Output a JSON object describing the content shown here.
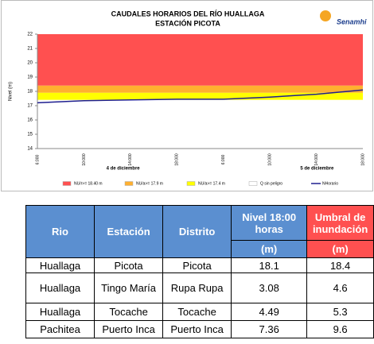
{
  "chart_data": {
    "type": "line",
    "title": "CAUDALES HORARIOS DEL RÍO HUALLAGA",
    "subtitle": "ESTACIÓN PICOTA",
    "logo": "Senamhi",
    "y_label": "Nivel (m)",
    "categories": [
      "6:000",
      "10:000",
      "14:000",
      "18:000",
      "6:000",
      "10:000",
      "14:000",
      "18:000"
    ],
    "date_labels": [
      "4 de diciembre",
      "5 de diciembre"
    ],
    "ylim": [
      14,
      22
    ],
    "yticks": [
      14,
      15,
      16,
      17,
      18,
      19,
      20,
      21,
      22
    ],
    "bands": [
      {
        "name": "NU/r>= 18.40 m",
        "color": "#ff5050",
        "from": 18.4,
        "to": 22
      },
      {
        "name": "NU/a>= 17.9 m",
        "color": "#ffb030",
        "from": 17.9,
        "to": 18.4
      },
      {
        "name": "NU/a>= 17.4 m",
        "color": "#ffff00",
        "from": 17.4,
        "to": 17.9
      },
      {
        "name": "Q sin peligro",
        "color": "#ffffff",
        "from": 14,
        "to": 17.4
      }
    ],
    "series": [
      {
        "name": "NHorario",
        "color": "#1f1f8f",
        "values": [
          17.2,
          17.35,
          17.4,
          17.45,
          17.45,
          17.6,
          17.8,
          18.1
        ]
      }
    ]
  },
  "table": {
    "header": [
      "Rio",
      "Estación",
      "Distrito",
      "Nivel 18:00 horas",
      "Umbral de inundación"
    ],
    "units": [
      "(m)",
      "(m)"
    ],
    "rows": [
      [
        "Huallaga",
        "Picota",
        "Picota",
        18.1,
        18.4
      ],
      [
        "Huallaga",
        "Tingo María",
        "Rupa Rupa",
        3.08,
        4.6
      ],
      [
        "Huallaga",
        "Tocache",
        "Tocache",
        4.49,
        5.3
      ],
      [
        "Pachitea",
        "Puerto Inca",
        "Puerto Inca",
        7.36,
        9.6
      ]
    ]
  }
}
